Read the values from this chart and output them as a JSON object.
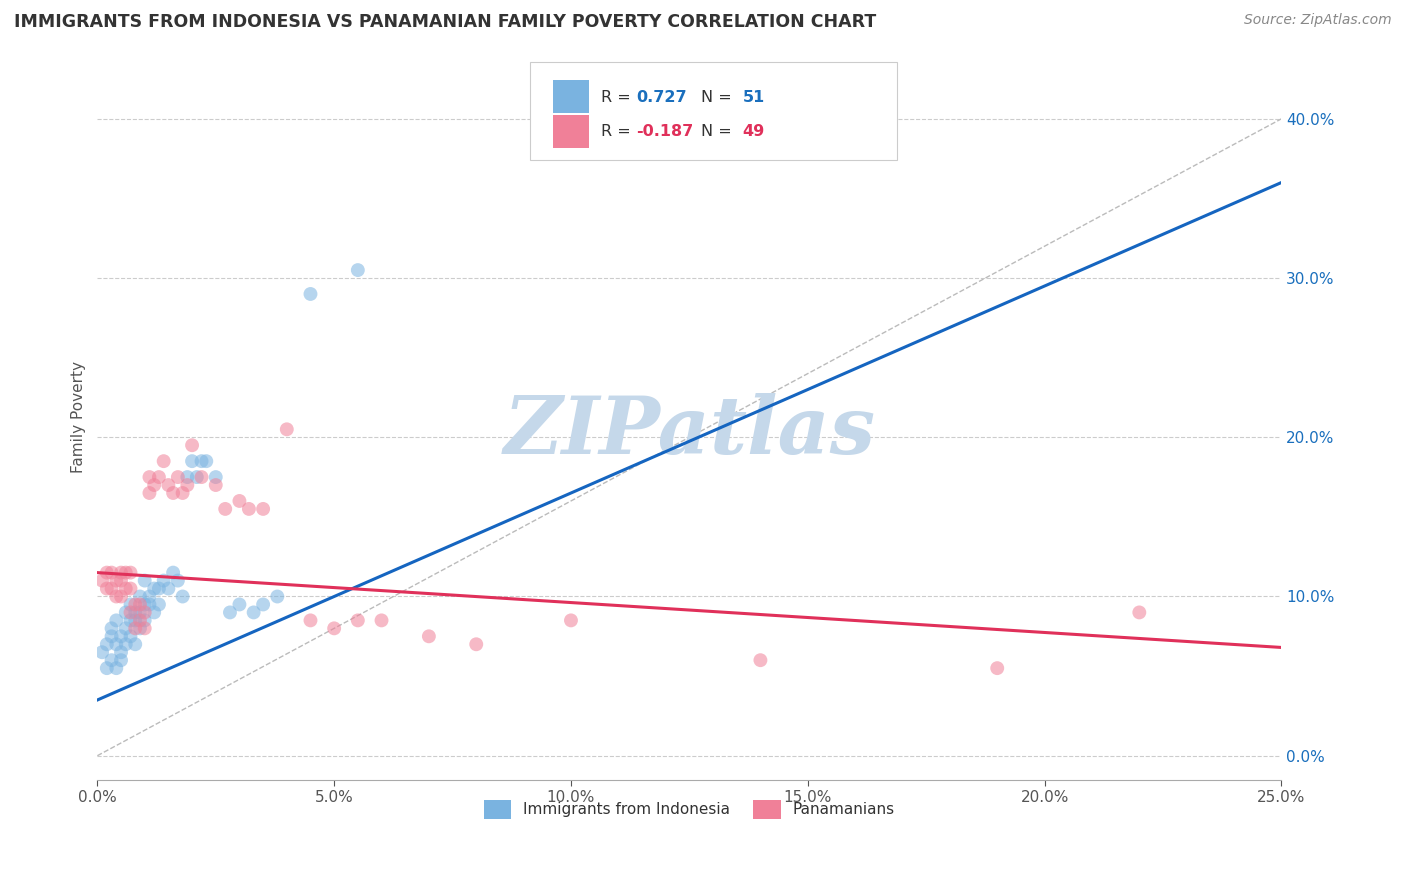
{
  "title": "IMMIGRANTS FROM INDONESIA VS PANAMANIAN FAMILY POVERTY CORRELATION CHART",
  "source": "Source: ZipAtlas.com",
  "ylabel": "Family Poverty",
  "xlim": [
    0.0,
    0.25
  ],
  "ylim": [
    -0.015,
    0.44
  ],
  "xticks": [
    0.0,
    0.05,
    0.1,
    0.15,
    0.2,
    0.25
  ],
  "xticklabels": [
    "0.0%",
    "5.0%",
    "10.0%",
    "15.0%",
    "20.0%",
    "25.0%"
  ],
  "yticks_right": [
    0.0,
    0.1,
    0.2,
    0.3,
    0.4
  ],
  "yticklabels_right": [
    "0.0%",
    "10.0%",
    "20.0%",
    "30.0%",
    "40.0%"
  ],
  "watermark": "ZIPatlas",
  "watermark_color": "#c5d8ea",
  "blue_scatter_x": [
    0.001,
    0.002,
    0.002,
    0.003,
    0.003,
    0.003,
    0.004,
    0.004,
    0.004,
    0.005,
    0.005,
    0.005,
    0.006,
    0.006,
    0.006,
    0.007,
    0.007,
    0.007,
    0.008,
    0.008,
    0.008,
    0.009,
    0.009,
    0.009,
    0.01,
    0.01,
    0.01,
    0.011,
    0.011,
    0.012,
    0.012,
    0.013,
    0.013,
    0.014,
    0.015,
    0.016,
    0.017,
    0.018,
    0.019,
    0.02,
    0.021,
    0.022,
    0.023,
    0.025,
    0.028,
    0.03,
    0.033,
    0.035,
    0.038,
    0.045,
    0.055
  ],
  "blue_scatter_y": [
    0.065,
    0.055,
    0.07,
    0.06,
    0.075,
    0.08,
    0.055,
    0.07,
    0.085,
    0.06,
    0.065,
    0.075,
    0.08,
    0.09,
    0.07,
    0.075,
    0.085,
    0.095,
    0.07,
    0.085,
    0.09,
    0.08,
    0.09,
    0.1,
    0.085,
    0.095,
    0.11,
    0.095,
    0.1,
    0.09,
    0.105,
    0.095,
    0.105,
    0.11,
    0.105,
    0.115,
    0.11,
    0.1,
    0.175,
    0.185,
    0.175,
    0.185,
    0.185,
    0.175,
    0.09,
    0.095,
    0.09,
    0.095,
    0.1,
    0.29,
    0.305
  ],
  "pink_scatter_x": [
    0.001,
    0.002,
    0.002,
    0.003,
    0.003,
    0.004,
    0.004,
    0.005,
    0.005,
    0.005,
    0.006,
    0.006,
    0.007,
    0.007,
    0.007,
    0.008,
    0.008,
    0.009,
    0.009,
    0.01,
    0.01,
    0.011,
    0.011,
    0.012,
    0.013,
    0.014,
    0.015,
    0.016,
    0.017,
    0.018,
    0.019,
    0.02,
    0.022,
    0.025,
    0.027,
    0.03,
    0.032,
    0.035,
    0.04,
    0.045,
    0.05,
    0.055,
    0.06,
    0.07,
    0.08,
    0.1,
    0.14,
    0.19,
    0.22
  ],
  "pink_scatter_y": [
    0.11,
    0.105,
    0.115,
    0.105,
    0.115,
    0.1,
    0.11,
    0.1,
    0.11,
    0.115,
    0.105,
    0.115,
    0.09,
    0.105,
    0.115,
    0.08,
    0.095,
    0.085,
    0.095,
    0.08,
    0.09,
    0.165,
    0.175,
    0.17,
    0.175,
    0.185,
    0.17,
    0.165,
    0.175,
    0.165,
    0.17,
    0.195,
    0.175,
    0.17,
    0.155,
    0.16,
    0.155,
    0.155,
    0.205,
    0.085,
    0.08,
    0.085,
    0.085,
    0.075,
    0.07,
    0.085,
    0.06,
    0.055,
    0.09
  ],
  "blue_line_x": [
    0.0,
    0.25
  ],
  "blue_line_y": [
    0.035,
    0.36
  ],
  "pink_line_x": [
    0.0,
    0.25
  ],
  "pink_line_y": [
    0.115,
    0.068
  ],
  "diagonal_line_x": [
    0.0,
    0.25
  ],
  "diagonal_line_y": [
    0.0,
    0.4
  ],
  "blue_scatter_color": "#7ab3e0",
  "blue_line_color": "#1565c0",
  "pink_scatter_color": "#f08098",
  "pink_line_color": "#e0305a",
  "diagonal_color": "#bbbbbb",
  "scatter_size": 100,
  "scatter_alpha": 0.55,
  "legend_r1": "R =  0.727",
  "legend_n1": "N =  51",
  "legend_r2": "R = -0.187",
  "legend_n2": "N =  49",
  "legend_blue_color": "#1a6fbd",
  "legend_pink_color": "#e0305a",
  "legend_text_color": "#333333",
  "right_axis_color": "#1a6fbd"
}
